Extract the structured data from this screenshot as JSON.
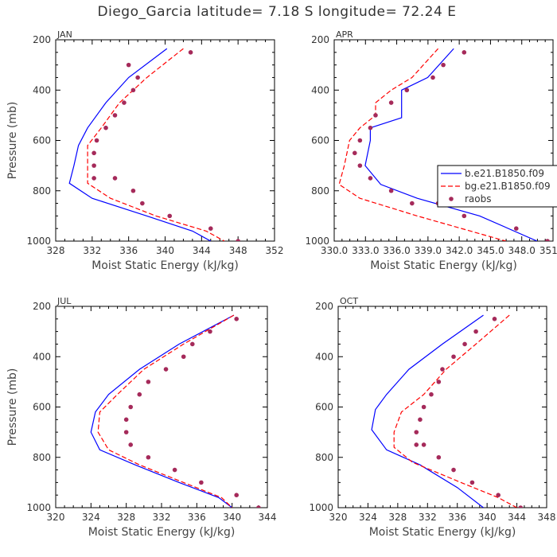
{
  "figure": {
    "title": "Diego_Garcia  latitude= 7.18 S longitude= 72.24 E"
  },
  "colors": {
    "model1": "#0000ff",
    "model2": "#ff0000",
    "raobs": "#a52a5a"
  },
  "chart_data": [
    {
      "type": "line",
      "panel_label": "JAN",
      "xlabel": "Moist Static Energy (kJ/kg)",
      "ylabel": "Pressure (mb)",
      "xlim": [
        328,
        352
      ],
      "xticks": [
        328,
        332,
        336,
        340,
        344,
        348,
        352
      ],
      "xtick_labels": [
        "328",
        "332",
        "336",
        "340",
        "344",
        "348",
        "352"
      ],
      "ylim": [
        1000,
        200
      ],
      "yticks": [
        200,
        400,
        600,
        800,
        1000
      ],
      "ytick_labels": [
        "200",
        "400",
        "600",
        "800",
        "1000"
      ],
      "y_inverted": true,
      "grid": false,
      "legend": null,
      "series": [
        {
          "style": "solid",
          "color": "#0000ff",
          "x": [
            340.2,
            336.0,
            333.5,
            331.5,
            330.5,
            330.0,
            329.5,
            332.0,
            338.0,
            343.0,
            345.0
          ],
          "y": [
            235,
            350,
            450,
            550,
            620,
            700,
            770,
            830,
            900,
            960,
            1000
          ]
        },
        {
          "style": "dashed",
          "color": "#ff0000",
          "x": [
            342.0,
            338.0,
            335.0,
            333.0,
            331.5,
            331.5,
            331.5,
            334.0,
            339.0,
            344.5,
            346.5
          ],
          "y": [
            235,
            350,
            450,
            550,
            620,
            700,
            770,
            830,
            900,
            960,
            1000
          ]
        },
        {
          "style": "markers",
          "color": "#a52a5a",
          "x": [
            342.8,
            336.0,
            337.0,
            336.5,
            335.5,
            334.5,
            333.5,
            332.5,
            332.2,
            332.2,
            332.2,
            334.5,
            336.5,
            337.5,
            340.5,
            345.0,
            348.0
          ],
          "y": [
            250,
            300,
            350,
            400,
            450,
            500,
            550,
            600,
            650,
            700,
            750,
            750,
            800,
            850,
            900,
            950,
            1000
          ]
        }
      ]
    },
    {
      "type": "line",
      "panel_label": "APR",
      "xlabel": "Moist Static Energy (kJ/kg)",
      "ylabel": "",
      "xlim": [
        330.03,
        351.03
      ],
      "xticks": [
        330.03,
        333.03,
        336.03,
        339.03,
        342.03,
        345.03,
        348.03,
        351.03
      ],
      "xtick_labels": [
        "330.0",
        "333.0",
        "336.0",
        "339.0",
        "342.0",
        "345.0",
        "348.0",
        "351.0"
      ],
      "ylim": [
        1000,
        200
      ],
      "yticks": [
        200,
        400,
        600,
        800,
        1000
      ],
      "ytick_labels": [
        "200",
        "400",
        "600",
        "800",
        "1000"
      ],
      "y_inverted": true,
      "grid": false,
      "legend": {
        "position": "right",
        "entries": [
          {
            "label": "b.e21.B1850.f09",
            "style": "solid",
            "color": "#0000ff"
          },
          {
            "label": "bg.e21.B1850.f09",
            "style": "dashed",
            "color": "#ff0000"
          },
          {
            "label": "raobs",
            "style": "markers",
            "color": "#a52a5a"
          }
        ]
      },
      "series": [
        {
          "style": "solid",
          "color": "#0000ff",
          "x": [
            341.5,
            339.0,
            336.5,
            336.5,
            336.5,
            333.5,
            333.5,
            333.0,
            334.5,
            338.0,
            344.0,
            349.5
          ],
          "y": [
            235,
            350,
            400,
            450,
            510,
            550,
            600,
            700,
            775,
            830,
            900,
            1000
          ]
        },
        {
          "style": "dashed",
          "color": "#ff0000",
          "x": [
            340.0,
            337.5,
            335.5,
            334.0,
            334.0,
            332.5,
            331.5,
            331.0,
            330.5,
            332.5,
            338.0,
            346.5
          ],
          "y": [
            235,
            350,
            400,
            450,
            500,
            550,
            600,
            700,
            775,
            830,
            900,
            1000
          ]
        },
        {
          "style": "markers",
          "color": "#a52a5a",
          "x": [
            342.5,
            340.5,
            339.5,
            337.0,
            335.5,
            334.0,
            333.5,
            332.5,
            332.0,
            332.5,
            333.5,
            335.5,
            337.5,
            340.0,
            342.5,
            347.5,
            350.5
          ],
          "y": [
            250,
            300,
            350,
            400,
            450,
            500,
            550,
            600,
            650,
            700,
            750,
            800,
            850,
            850,
            900,
            950,
            1000
          ]
        }
      ]
    },
    {
      "type": "line",
      "panel_label": "JUL",
      "xlabel": "Moist Static Energy (kJ/kg)",
      "ylabel": "Pressure (mb)",
      "xlim": [
        320,
        344
      ],
      "xticks": [
        320,
        324,
        328,
        332,
        336,
        340,
        344
      ],
      "xtick_labels": [
        "320",
        "324",
        "328",
        "332",
        "336",
        "340",
        "344"
      ],
      "ylim": [
        1000,
        200
      ],
      "yticks": [
        200,
        400,
        600,
        800,
        1000
      ],
      "ytick_labels": [
        "200",
        "400",
        "600",
        "800",
        "1000"
      ],
      "y_inverted": true,
      "grid": false,
      "legend": null,
      "series": [
        {
          "style": "solid",
          "color": "#0000ff",
          "x": [
            340.2,
            334.0,
            329.5,
            326.0,
            324.5,
            324.0,
            325.0,
            329.0,
            334.0,
            338.5,
            340.0
          ],
          "y": [
            235,
            350,
            450,
            550,
            620,
            700,
            770,
            830,
            900,
            960,
            1000
          ]
        },
        {
          "style": "dashed",
          "color": "#ff0000",
          "x": [
            340.2,
            334.5,
            330.0,
            327.0,
            325.0,
            324.8,
            326.0,
            329.5,
            334.5,
            338.8,
            340.0
          ],
          "y": [
            235,
            350,
            450,
            550,
            620,
            700,
            770,
            830,
            900,
            960,
            1000
          ]
        },
        {
          "style": "markers",
          "color": "#a52a5a",
          "x": [
            340.5,
            337.5,
            335.5,
            334.5,
            332.5,
            330.5,
            329.5,
            328.5,
            328.0,
            328.0,
            328.5,
            330.5,
            333.5,
            336.5,
            340.5,
            343.0
          ],
          "y": [
            250,
            300,
            350,
            400,
            450,
            500,
            550,
            600,
            650,
            700,
            750,
            800,
            850,
            900,
            950,
            1000
          ]
        }
      ]
    },
    {
      "type": "line",
      "panel_label": "OCT",
      "xlabel": "Moist Static Energy (kJ/kg)",
      "ylabel": "",
      "xlim": [
        320,
        348
      ],
      "xticks": [
        320,
        324,
        328,
        332,
        336,
        340,
        344,
        348
      ],
      "xtick_labels": [
        "320",
        "324",
        "328",
        "332",
        "336",
        "340",
        "344",
        "348"
      ],
      "ylim": [
        1000,
        200
      ],
      "yticks": [
        200,
        400,
        600,
        800,
        1000
      ],
      "ytick_labels": [
        "200",
        "400",
        "600",
        "800",
        "1000"
      ],
      "y_inverted": true,
      "grid": false,
      "legend": null,
      "series": [
        {
          "style": "solid",
          "color": "#0000ff",
          "x": [
            339.5,
            334.0,
            329.5,
            326.5,
            325.0,
            324.5,
            326.5,
            331.0,
            336.0,
            339.5
          ],
          "y": [
            235,
            350,
            450,
            550,
            610,
            690,
            770,
            830,
            920,
            1000
          ]
        },
        {
          "style": "dashed",
          "color": "#ff0000",
          "x": [
            343.0,
            338.5,
            334.5,
            331.5,
            328.5,
            327.5,
            327.5,
            330.0,
            336.5,
            341.5,
            344.0
          ],
          "y": [
            235,
            350,
            450,
            550,
            620,
            700,
            760,
            820,
            900,
            960,
            1000
          ]
        },
        {
          "style": "markers",
          "color": "#a52a5a",
          "x": [
            341.0,
            338.5,
            337.0,
            335.5,
            334.0,
            333.5,
            332.5,
            331.5,
            331.0,
            330.5,
            330.5,
            331.5,
            333.5,
            335.5,
            338.0,
            341.5,
            344.5
          ],
          "y": [
            250,
            300,
            350,
            400,
            450,
            500,
            550,
            600,
            650,
            700,
            750,
            750,
            800,
            850,
            900,
            950,
            1000
          ]
        }
      ]
    }
  ]
}
